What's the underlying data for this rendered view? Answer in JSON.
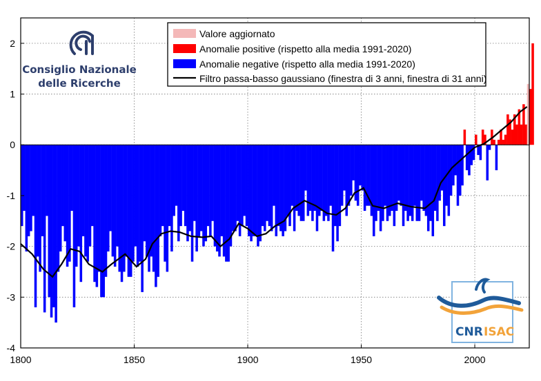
{
  "chart_data": {
    "type": "bar",
    "title": "",
    "xlabel": "",
    "ylabel": "",
    "xlim": [
      1800,
      2024
    ],
    "ylim": [
      -4,
      2.5
    ],
    "x_ticks": [
      1800,
      1850,
      1900,
      1950,
      2000
    ],
    "x_tick_labels": [
      "1800",
      "1850",
      "1900",
      "1950",
      "2000"
    ],
    "y_ticks": [
      -4,
      -3,
      -2,
      -1,
      0,
      1,
      2
    ],
    "y_tick_labels": [
      "-4",
      "-3",
      "-2",
      "-1",
      "0",
      "1",
      "2"
    ],
    "grid": true,
    "legend_position": "top-right",
    "legend": [
      {
        "label": "Valore aggiornato",
        "color": "#f4b8b8",
        "kind": "patch"
      },
      {
        "label": "Anomalie positive (rispetto alla media 1991-2020)",
        "color": "#ff0000",
        "kind": "patch"
      },
      {
        "label": "Anomalie negative (rispetto alla media 1991-2020)",
        "color": "#0000ff",
        "kind": "patch"
      },
      {
        "label": "Filtro passa-basso gaussiano (finestra di 3 anni, finestra di 31 anni)",
        "color": "#000000",
        "kind": "line"
      }
    ],
    "bar_colors": {
      "positive": "#ff0000",
      "negative": "#0000ff",
      "updated": "#f4b8b8"
    },
    "start_year": 1800,
    "updated_year": 2023,
    "values": [
      -1.6,
      -1.3,
      -2.1,
      -1.8,
      -1.7,
      -1.4,
      -3.2,
      -2.2,
      -2.5,
      -1.8,
      -3.3,
      -1.4,
      -3.0,
      -3.4,
      -3.2,
      -3.5,
      -2.5,
      -2.1,
      -1.6,
      -1.9,
      -2.4,
      -2.3,
      -1.3,
      -3.2,
      -2.4,
      -2.0,
      -2.7,
      -1.8,
      -2.2,
      -2.3,
      -2.0,
      -1.6,
      -2.7,
      -2.8,
      -2.5,
      -3.0,
      -3.0,
      -2.6,
      -2.1,
      -1.7,
      -2.2,
      -2.4,
      -2.0,
      -2.5,
      -2.7,
      -2.5,
      -2.2,
      -2.6,
      -2.6,
      -2.3,
      -2.0,
      -2.4,
      -2.3,
      -2.9,
      -1.9,
      -2.2,
      -2.5,
      -2.2,
      -2.5,
      -2.8,
      -2.6,
      -1.8,
      -1.6,
      -2.3,
      -2.5,
      -1.6,
      -2.1,
      -1.4,
      -1.2,
      -1.9,
      -1.6,
      -1.3,
      -1.6,
      -1.9,
      -1.7,
      -2.3,
      -1.5,
      -2.1,
      -1.8,
      -1.7,
      -2.0,
      -1.9,
      -1.6,
      -1.8,
      -1.5,
      -2.0,
      -2.1,
      -2.2,
      -1.8,
      -2.2,
      -2.3,
      -2.3,
      -2.0,
      -1.7,
      -1.7,
      -1.5,
      -1.8,
      -1.6,
      -1.4,
      -1.6,
      -1.8,
      -1.9,
      -1.8,
      -1.8,
      -2.0,
      -1.9,
      -1.6,
      -1.7,
      -1.5,
      -1.6,
      -1.7,
      -1.2,
      -1.8,
      -1.6,
      -1.7,
      -1.8,
      -1.7,
      -1.4,
      -1.6,
      -1.2,
      -1.7,
      -1.3,
      -1.4,
      -1.5,
      -1.5,
      -0.9,
      -1.4,
      -1.3,
      -1.5,
      -1.3,
      -1.7,
      -1.4,
      -1.3,
      -1.5,
      -1.4,
      -1.5,
      -1.2,
      -2.1,
      -1.6,
      -1.9,
      -1.6,
      -1.2,
      -0.9,
      -1.4,
      -1.2,
      -1.0,
      -0.7,
      -1.1,
      -1.2,
      -0.8,
      -0.9,
      -1.3,
      -1.2,
      -1.2,
      -1.4,
      -1.8,
      -1.5,
      -1.3,
      -1.7,
      -1.5,
      -1.2,
      -1.5,
      -1.4,
      -1.3,
      -1.6,
      -1.3,
      -1.1,
      -1.2,
      -1.6,
      -1.3,
      -1.5,
      -1.4,
      -1.5,
      -1.2,
      -1.5,
      -1.5,
      -1.1,
      -1.3,
      -1.4,
      -1.7,
      -1.5,
      -1.8,
      -1.3,
      -1.5,
      -1.1,
      -0.9,
      -1.6,
      -1.2,
      -1.4,
      -1.0,
      -0.8,
      -0.6,
      -1.2,
      -1.0,
      -0.8,
      0.3,
      -0.5,
      -0.6,
      -0.4,
      -0.3,
      0.2,
      -0.2,
      -0.3,
      0.3,
      0.2,
      -0.7,
      -0.1,
      0.3,
      0.1,
      -0.5,
      0.1,
      0.3,
      0.1,
      0.2,
      0.6,
      0.5,
      0.3,
      0.6,
      0.4,
      0.7,
      0.4,
      0.8,
      0.4,
      1.2,
      1.1,
      2.0
    ],
    "smoothed": {
      "x": [
        1800,
        1805,
        1810,
        1814,
        1818,
        1822,
        1826,
        1830,
        1836,
        1840,
        1846,
        1851,
        1855,
        1858,
        1862,
        1866,
        1870,
        1875,
        1880,
        1884,
        1888,
        1892,
        1896,
        1900,
        1904,
        1908,
        1912,
        1916,
        1920,
        1925,
        1930,
        1935,
        1939,
        1943,
        1947,
        1951,
        1955,
        1960,
        1966,
        1972,
        1978,
        1982,
        1985,
        1990,
        1995,
        2000,
        2004,
        2008,
        2012,
        2016,
        2020,
        2023
      ],
      "y": [
        -1.95,
        -2.15,
        -2.45,
        -2.6,
        -2.35,
        -2.05,
        -2.1,
        -2.35,
        -2.5,
        -2.35,
        -2.15,
        -2.4,
        -2.25,
        -1.95,
        -1.75,
        -1.7,
        -1.72,
        -1.8,
        -1.82,
        -1.8,
        -2.0,
        -1.85,
        -1.55,
        -1.65,
        -1.8,
        -1.75,
        -1.6,
        -1.5,
        -1.25,
        -1.1,
        -1.2,
        -1.35,
        -1.38,
        -1.25,
        -0.95,
        -0.85,
        -1.2,
        -1.25,
        -1.15,
        -1.22,
        -1.25,
        -1.1,
        -0.75,
        -0.45,
        -0.25,
        -0.05,
        0.02,
        0.15,
        0.3,
        0.45,
        0.65,
        0.75
      ]
    }
  },
  "logos": {
    "cnr": {
      "line1": "Consiglio Nazionale",
      "line2": "delle Ricerche"
    },
    "isac": {
      "left": "CNR",
      "right": "ISAC"
    }
  },
  "colors": {
    "cnr_blue": "#2d3e6c",
    "isac_blue": "#1f5b9a",
    "isac_orange": "#f2a33a",
    "isac_frame": "#7fb3e0"
  }
}
